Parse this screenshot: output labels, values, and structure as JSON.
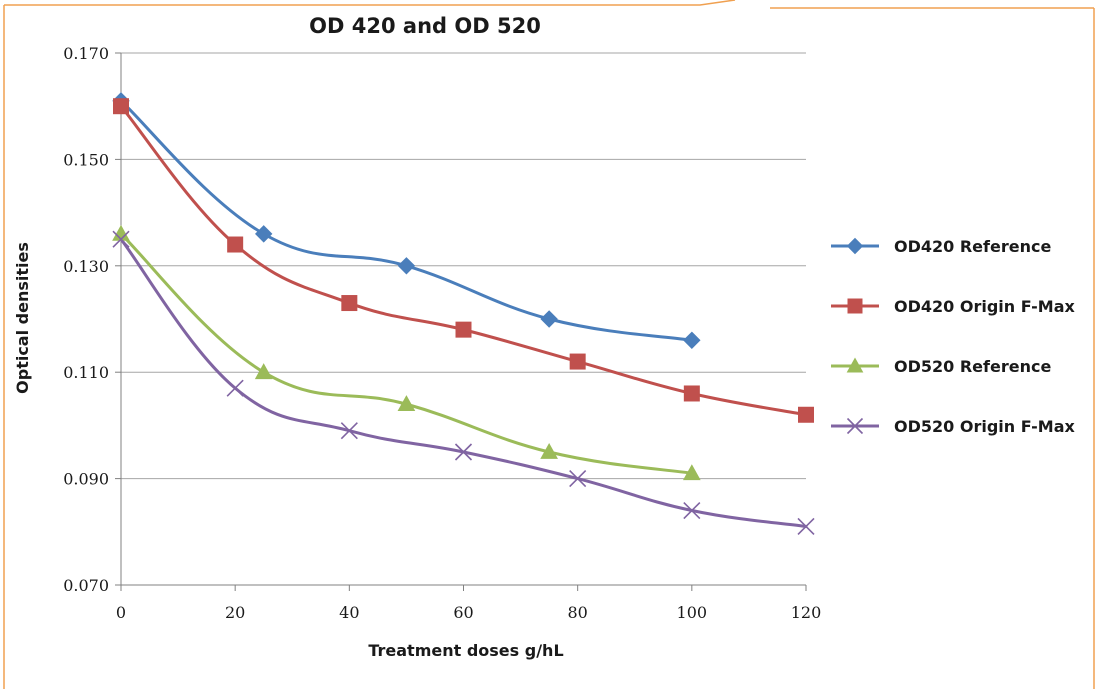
{
  "colors": {
    "border": "#f0a050",
    "grid": "#a6a6a6",
    "axis": "#808080",
    "od420_reference": "#4a7ebb",
    "od420_origin": "#c0504d",
    "od520_reference": "#9bbb59",
    "od520_origin": "#8064a2"
  },
  "chart_data": {
    "type": "line",
    "title": "OD 420 and OD 520",
    "xlabel": "Treatment doses g/hL",
    "ylabel": "Optical densities",
    "xlim": [
      0,
      120
    ],
    "ylim": [
      0.07,
      0.17
    ],
    "xticks": [
      "0",
      "20",
      "40",
      "60",
      "80",
      "100",
      "120"
    ],
    "xtick_values": [
      0,
      20,
      40,
      60,
      80,
      100,
      120
    ],
    "yticks": [
      "0.070",
      "0.090",
      "0.110",
      "0.130",
      "0.150",
      "0.170"
    ],
    "ytick_values": [
      0.07,
      0.09,
      0.11,
      0.13,
      0.15,
      0.17
    ],
    "grid": "horizontal",
    "legend_position": "right",
    "series": [
      {
        "name": "OD420 Reference",
        "marker": "diamond",
        "color": "#4a7ebb",
        "x": [
          0,
          25,
          50,
          75,
          100
        ],
        "y": [
          0.161,
          0.136,
          0.13,
          0.12,
          0.116
        ]
      },
      {
        "name": "OD420 Origin F-Max",
        "marker": "square",
        "color": "#c0504d",
        "x": [
          0,
          20,
          40,
          60,
          80,
          100,
          120
        ],
        "y": [
          0.16,
          0.134,
          0.123,
          0.118,
          0.112,
          0.106,
          0.102
        ]
      },
      {
        "name": "OD520 Reference",
        "marker": "triangle",
        "color": "#9bbb59",
        "x": [
          0,
          25,
          50,
          75,
          100
        ],
        "y": [
          0.136,
          0.11,
          0.104,
          0.095,
          0.091
        ]
      },
      {
        "name": "OD520 Origin F-Max",
        "marker": "x",
        "color": "#8064a2",
        "x": [
          0,
          20,
          40,
          60,
          80,
          100,
          120
        ],
        "y": [
          0.135,
          0.107,
          0.099,
          0.095,
          0.09,
          0.084,
          0.081
        ]
      }
    ]
  }
}
